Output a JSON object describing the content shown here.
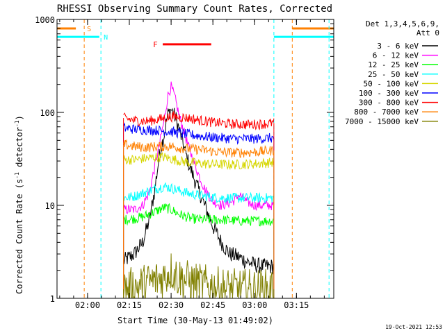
{
  "chart_data": {
    "type": "line",
    "title": "RHESSI Observing Summary Count Rates, Corrected",
    "xlabel": "Start Time (30-May-13 01:49:02)",
    "ylabel_main": "Corrected Count Rate (s",
    "ylabel_exp1": "-1",
    "ylabel_mid": " detector",
    "ylabel_exp2": "-1",
    "ylabel_end": ")",
    "y_scale": "log",
    "ylim": [
      1,
      1000
    ],
    "xlim": [
      1.8172,
      3.4733
    ],
    "x_ticks": [
      {
        "label": "02:00",
        "value": 2.0
      },
      {
        "label": "02:15",
        "value": 2.25
      },
      {
        "label": "02:30",
        "value": 2.5
      },
      {
        "label": "02:45",
        "value": 2.75
      },
      {
        "label": "03:00",
        "value": 3.0
      },
      {
        "label": "03:15",
        "value": 3.25
      }
    ],
    "y_ticks": [
      {
        "label": "1",
        "value": 1
      },
      {
        "label": "10",
        "value": 10
      },
      {
        "label": "100",
        "value": 100
      },
      {
        "label": "1000",
        "value": 1000
      }
    ],
    "legend_header": [
      "Det 1,3,4,5,6,9,",
      "Att 0"
    ],
    "legend_placement": "right",
    "timestamp": "19-Oct-2021 12:53",
    "data_window": [
      2.215,
      3.115
    ],
    "orbit_lines": [
      {
        "kind": "saa",
        "label": "S",
        "color": "#ff8000",
        "x": 1.98,
        "y": 800,
        "bar": [
          1.817,
          1.93
        ]
      },
      {
        "kind": "night",
        "label": "N",
        "color": "#00ffff",
        "x": 2.08,
        "y": 650,
        "bar": [
          1.817,
          2.07
        ]
      },
      {
        "kind": "night",
        "label": "",
        "color": "#00ffff",
        "x": 3.115,
        "y": 650,
        "bar": [
          3.115,
          3.473
        ]
      },
      {
        "kind": "saa",
        "label": "",
        "color": "#ff8000",
        "x": 3.225,
        "y": 800,
        "bar": [
          3.225,
          3.473
        ]
      },
      {
        "kind": "night",
        "label": "",
        "color": "#00ffff",
        "x": 3.445,
        "y": 650,
        "bar": []
      }
    ],
    "flare": {
      "label": "F",
      "color": "#ff0000",
      "x_start": 2.45,
      "x_end": 2.74,
      "y": 540
    },
    "series": [
      {
        "name": "3 - 6 keV",
        "color": "#000000",
        "points": [
          [
            2.215,
            2.5
          ],
          [
            2.28,
            3
          ],
          [
            2.33,
            4
          ],
          [
            2.37,
            7
          ],
          [
            2.4,
            14
          ],
          [
            2.43,
            35
          ],
          [
            2.46,
            60
          ],
          [
            2.48,
            95
          ],
          [
            2.5,
            108
          ],
          [
            2.53,
            85
          ],
          [
            2.56,
            55
          ],
          [
            2.6,
            30
          ],
          [
            2.65,
            17
          ],
          [
            2.7,
            10
          ],
          [
            2.75,
            6
          ],
          [
            2.8,
            4
          ],
          [
            2.85,
            3
          ],
          [
            2.9,
            2.8
          ],
          [
            2.95,
            2.5
          ],
          [
            3.0,
            2.3
          ],
          [
            3.05,
            2.2
          ],
          [
            3.115,
            2.2
          ]
        ]
      },
      {
        "name": "6 - 12 keV",
        "color": "#ff00ff",
        "points": [
          [
            2.215,
            9
          ],
          [
            2.28,
            9
          ],
          [
            2.33,
            10
          ],
          [
            2.37,
            14
          ],
          [
            2.4,
            25
          ],
          [
            2.43,
            45
          ],
          [
            2.46,
            85
          ],
          [
            2.48,
            150
          ],
          [
            2.5,
            190
          ],
          [
            2.52,
            150
          ],
          [
            2.55,
            90
          ],
          [
            2.6,
            45
          ],
          [
            2.65,
            25
          ],
          [
            2.7,
            15
          ],
          [
            2.75,
            11
          ],
          [
            2.8,
            10
          ],
          [
            2.87,
            11
          ],
          [
            2.91,
            13
          ],
          [
            2.95,
            11
          ],
          [
            3.0,
            10
          ],
          [
            3.05,
            10
          ],
          [
            3.115,
            10
          ]
        ]
      },
      {
        "name": "12 - 25 keV",
        "color": "#00ff00",
        "points": [
          [
            2.215,
            7
          ],
          [
            2.28,
            7.2
          ],
          [
            2.33,
            7.5
          ],
          [
            2.4,
            8.5
          ],
          [
            2.46,
            9.5
          ],
          [
            2.5,
            9
          ],
          [
            2.55,
            8
          ],
          [
            2.62,
            7.2
          ],
          [
            2.7,
            7
          ],
          [
            2.8,
            7
          ],
          [
            2.9,
            6.8
          ],
          [
            3.0,
            6.8
          ],
          [
            3.115,
            6.8
          ]
        ]
      },
      {
        "name": "25 - 50 keV",
        "color": "#00ffff",
        "points": [
          [
            2.215,
            12
          ],
          [
            2.28,
            12.5
          ],
          [
            2.33,
            13.5
          ],
          [
            2.4,
            15
          ],
          [
            2.46,
            16
          ],
          [
            2.52,
            15
          ],
          [
            2.6,
            13.5
          ],
          [
            2.7,
            12.5
          ],
          [
            2.8,
            12
          ],
          [
            2.9,
            12
          ],
          [
            3.0,
            12
          ],
          [
            3.115,
            12
          ]
        ]
      },
      {
        "name": "50 - 100 keV",
        "color": "#d6d600",
        "points": [
          [
            2.215,
            31
          ],
          [
            2.28,
            31
          ],
          [
            2.35,
            32
          ],
          [
            2.4,
            33
          ],
          [
            2.46,
            33
          ],
          [
            2.52,
            31
          ],
          [
            2.6,
            29
          ],
          [
            2.7,
            28
          ],
          [
            2.8,
            27.5
          ],
          [
            2.9,
            27.5
          ],
          [
            3.0,
            28
          ],
          [
            3.115,
            29
          ]
        ]
      },
      {
        "name": "100 - 300 keV",
        "color": "#0000ff",
        "points": [
          [
            2.215,
            68
          ],
          [
            2.28,
            66
          ],
          [
            2.35,
            65
          ],
          [
            2.42,
            64
          ],
          [
            2.5,
            62
          ],
          [
            2.6,
            58
          ],
          [
            2.7,
            55
          ],
          [
            2.8,
            53
          ],
          [
            2.9,
            52
          ],
          [
            3.0,
            52
          ],
          [
            3.115,
            53
          ]
        ]
      },
      {
        "name": "300 - 800 keV",
        "color": "#ff0000",
        "points": [
          [
            2.215,
            87
          ],
          [
            2.28,
            82
          ],
          [
            2.35,
            80
          ],
          [
            2.42,
            84
          ],
          [
            2.5,
            90
          ],
          [
            2.58,
            88
          ],
          [
            2.66,
            83
          ],
          [
            2.75,
            78
          ],
          [
            2.85,
            75
          ],
          [
            2.95,
            74
          ],
          [
            3.05,
            75
          ],
          [
            3.115,
            77
          ]
        ]
      },
      {
        "name": "800 - 7000 keV",
        "color": "#ff8000",
        "points": [
          [
            2.215,
            45
          ],
          [
            2.28,
            43
          ],
          [
            2.35,
            42
          ],
          [
            2.42,
            43
          ],
          [
            2.5,
            43
          ],
          [
            2.58,
            41
          ],
          [
            2.66,
            40
          ],
          [
            2.75,
            38
          ],
          [
            2.85,
            37
          ],
          [
            2.95,
            37
          ],
          [
            3.05,
            38
          ],
          [
            3.115,
            39
          ]
        ]
      },
      {
        "name": "7000 - 15000 keV",
        "color": "#808000",
        "points": [
          [
            2.215,
            1.25
          ],
          [
            2.3,
            1.35
          ],
          [
            2.38,
            1.5
          ],
          [
            2.46,
            1.7
          ],
          [
            2.5,
            2.0
          ],
          [
            2.54,
            1.7
          ],
          [
            2.62,
            1.5
          ],
          [
            2.7,
            1.4
          ],
          [
            2.8,
            1.3
          ],
          [
            2.9,
            1.25
          ],
          [
            3.0,
            1.25
          ],
          [
            3.115,
            1.25
          ]
        ]
      }
    ]
  }
}
